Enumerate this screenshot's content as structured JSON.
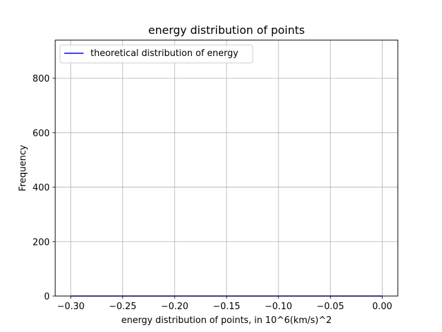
{
  "chart_data": {
    "type": "line",
    "title": "energy distribution of points",
    "xlabel": "energy distribution of points, in 10^6(km/s)^2",
    "ylabel": "Frequency",
    "xlim": [
      -0.315,
      0.015
    ],
    "ylim": [
      0,
      940
    ],
    "xticks": [
      -0.3,
      -0.25,
      -0.2,
      -0.15,
      -0.1,
      -0.05,
      0.0
    ],
    "xtick_labels": [
      "−0.30",
      "−0.25",
      "−0.20",
      "−0.15",
      "−0.10",
      "−0.05",
      "0.00"
    ],
    "yticks": [
      0,
      200,
      400,
      600,
      800
    ],
    "ytick_labels": [
      "0",
      "200",
      "400",
      "600",
      "800"
    ],
    "grid": true,
    "legend_position": "top-left",
    "series": [
      {
        "name": "theoretical distribution of energy",
        "color": "#0000ff",
        "x": [
          -0.3,
          -0.25,
          -0.2,
          -0.15,
          -0.1,
          -0.05,
          0.0
        ],
        "y": [
          0,
          0,
          0,
          0,
          0,
          0,
          0
        ]
      }
    ]
  }
}
